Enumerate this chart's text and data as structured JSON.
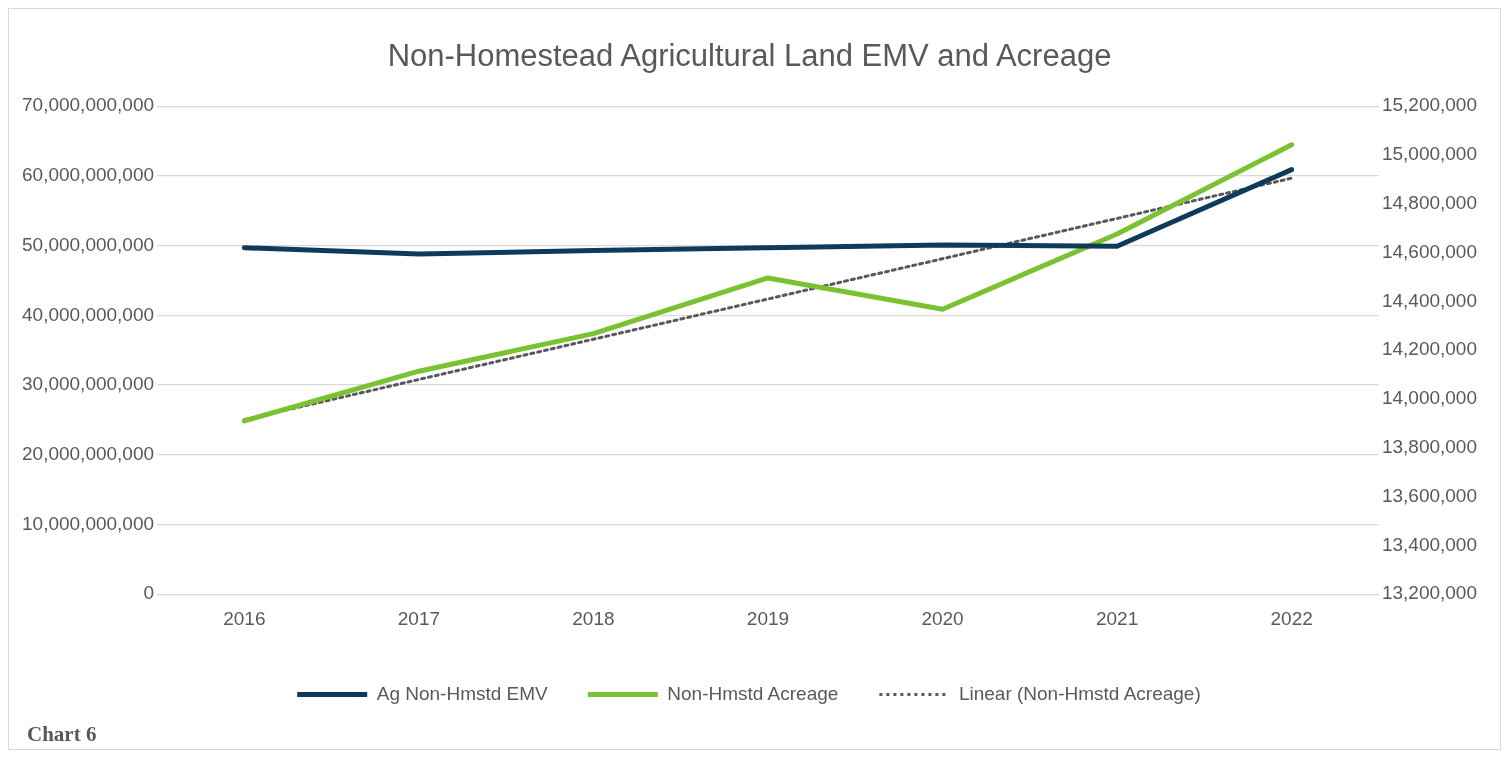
{
  "chart_data": {
    "type": "line",
    "title": "Non-Homestead Agricultural Land EMV and Acreage",
    "categories": [
      "2016",
      "2017",
      "2018",
      "2019",
      "2020",
      "2021",
      "2022"
    ],
    "series": [
      {
        "name": "Ag Non-Hmstd EMV",
        "color": "#0e3a5c",
        "values": [
          49700000000,
          48800000000,
          49300000000,
          49700000000,
          50100000000,
          49900000000,
          60900000000
        ]
      },
      {
        "name": "Non-Hmstd Acreage",
        "color": "#7ac231",
        "axis": "y2",
        "values": [
          13910000,
          14114000,
          14268000,
          14496000,
          14368000,
          14676000,
          15042000
        ]
      },
      {
        "name": "Linear (Non-Hmstd Acreage)",
        "color": "#595959",
        "axis": "y2",
        "line_style": "dotted",
        "values": [
          13915000,
          14080000,
          14245000,
          14410000,
          14575000,
          14740000,
          14905000
        ]
      }
    ],
    "ylim": [
      0,
      70000000000
    ],
    "yticks": [
      0,
      {
        "value": 10000000000,
        "label": "10,000,000,000"
      },
      {
        "value": 20000000000,
        "label": "20,000,000,000"
      },
      {
        "value": 30000000000,
        "label": "30,000,000,000"
      },
      {
        "value": 40000000000,
        "label": "40,000,000,000"
      },
      {
        "value": 50000000000,
        "label": "50,000,000,000"
      },
      {
        "value": 60000000000,
        "label": "60,000,000,000"
      },
      {
        "value": 70000000000,
        "label": "70,000,000,000"
      }
    ],
    "y2lim": [
      13200000,
      15200000
    ],
    "y2ticks": [
      {
        "value": 13200000,
        "label": "13,200,000"
      },
      {
        "value": 13400000,
        "label": "13,400,000"
      },
      {
        "value": 13600000,
        "label": "13,600,000"
      },
      {
        "value": 13800000,
        "label": "13,800,000"
      },
      {
        "value": 14000000,
        "label": "14,000,000"
      },
      {
        "value": 14200000,
        "label": "14,200,000"
      },
      {
        "value": 14400000,
        "label": "14,400,000"
      },
      {
        "value": 14600000,
        "label": "14,600,000"
      },
      {
        "value": 14800000,
        "label": "14,800,000"
      },
      {
        "value": 15000000,
        "label": "15,000,000"
      },
      {
        "value": 15200000,
        "label": "15,200,000"
      }
    ],
    "grid": "y",
    "legend": "bottom",
    "marker": "none",
    "annotations": [
      "Chart 6"
    ]
  }
}
